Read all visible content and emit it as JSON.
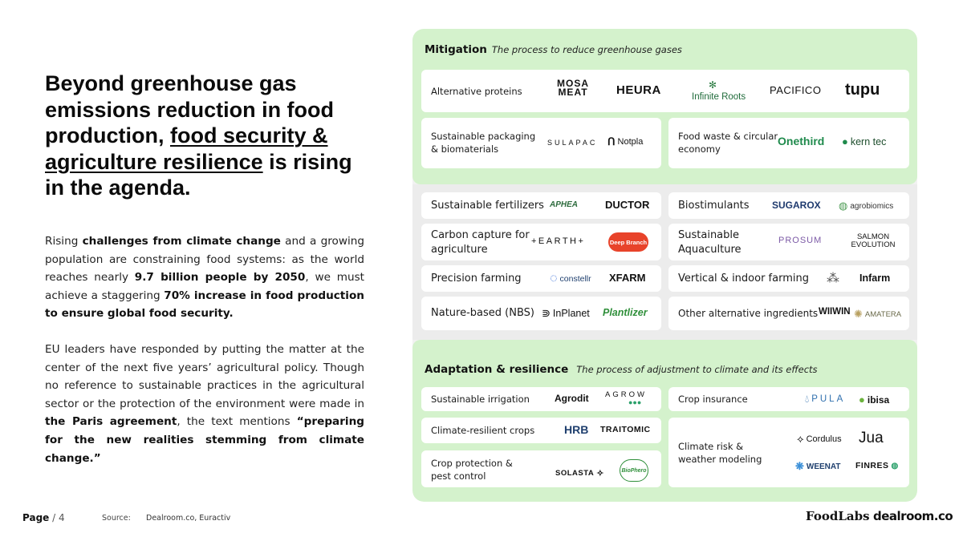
{
  "headline": {
    "part1": "Beyond greenhouse gas emissions reduction in food production, ",
    "underlined": "food security & agriculture resilience",
    "part2": " is rising in the agenda."
  },
  "paragraph1": {
    "t1": "Rising ",
    "b1": "challenges from climate change",
    "t2": " and a growing population are constraining food systems: as the world reaches nearly ",
    "b2": "9.7 billion people by 2050",
    "t3": ", we must achieve a staggering ",
    "b3": "70% increase in food production to ensure global food security."
  },
  "paragraph2": {
    "t1": "EU leaders have responded by putting the matter at the center of the next five years’ agricultural policy. Though no reference to sustainable practices in the agricultural sector or the protection of the environment were made in ",
    "b1": "the Paris agreement",
    "t2": ", the text mentions ",
    "b2": "“preparing for the new realities stemming from climate change.”"
  },
  "footer": {
    "page_label": "Page",
    "page_number": "/ 4",
    "source_label": "Source:",
    "source": "Dealroom.co, Euractiv",
    "brand_foodlabs": "FoodLabs",
    "brand_dealroom": "dealroom.co"
  },
  "mitigation": {
    "title": "Mitigation",
    "subtitle": "The process to reduce greenhouse gases",
    "cards": {
      "alt_proteins": {
        "label": "Alternative proteins",
        "logos": [
          "MOSA MEAT",
          "HEURA",
          "Infinite Roots",
          "PACIFICO",
          "tupu"
        ]
      },
      "packaging": {
        "label": "Sustainable packaging & biomaterials",
        "logos": [
          "SULAPAC",
          "Notpla"
        ]
      },
      "food_waste": {
        "label": "Food waste & circular economy",
        "logos": [
          "Onethird",
          "kern tec"
        ]
      }
    }
  },
  "middle": {
    "fertilizers": {
      "label": "Sustainable fertilizers",
      "logos": [
        "APHEA",
        "DUCTOR"
      ]
    },
    "biostimulants": {
      "label": "Biostimulants",
      "logos": [
        "SUGAROX",
        "agrobiomics"
      ]
    },
    "carbon": {
      "label": "Carbon capture for agriculture",
      "logos": [
        "+EARTH+",
        "Deep Branch"
      ]
    },
    "aquaculture": {
      "label": "Sustainable Aquaculture",
      "logos": [
        "PROSUM",
        "SALMON EVOLUTION"
      ]
    },
    "precision": {
      "label": "Precision farming",
      "logos": [
        "constellr",
        "XFARM"
      ]
    },
    "vertical": {
      "label": "Vertical & indoor farming",
      "logos": [
        "Infarm"
      ]
    },
    "nbs": {
      "label": "Nature-based (NBS)",
      "logos": [
        "InPlanet",
        "Plantlizer"
      ]
    },
    "other_ingredients": {
      "label": "Other alternative ingredients",
      "logos": [
        "WIIWIN",
        "AMATERA"
      ]
    }
  },
  "adaptation": {
    "title": "Adaptation & resilience",
    "subtitle": "The process of adjustment to climate and its effects",
    "cards": {
      "irrigation": {
        "label": "Sustainable irrigation",
        "logos": [
          "Agrodit",
          "AGROW"
        ]
      },
      "crop_insurance": {
        "label": "Crop insurance",
        "logos": [
          "PULA",
          "ibisa"
        ]
      },
      "resilient_crops": {
        "label": "Climate-resilient crops",
        "logos": [
          "HRB",
          "TRAITOMIC"
        ]
      },
      "climate_risk": {
        "label": "Climate risk & weather modeling",
        "logos": [
          "Cordulus",
          "Jua",
          "WEENAT",
          "FINRES"
        ]
      },
      "crop_protection": {
        "label": "Crop protection & pest control",
        "logos": [
          "SOLASTA",
          "BioPhero"
        ]
      }
    }
  },
  "colors": {
    "green_section": "#d4f2cc",
    "grey_section": "#ececec",
    "accent_green": "#1f8a4c"
  }
}
